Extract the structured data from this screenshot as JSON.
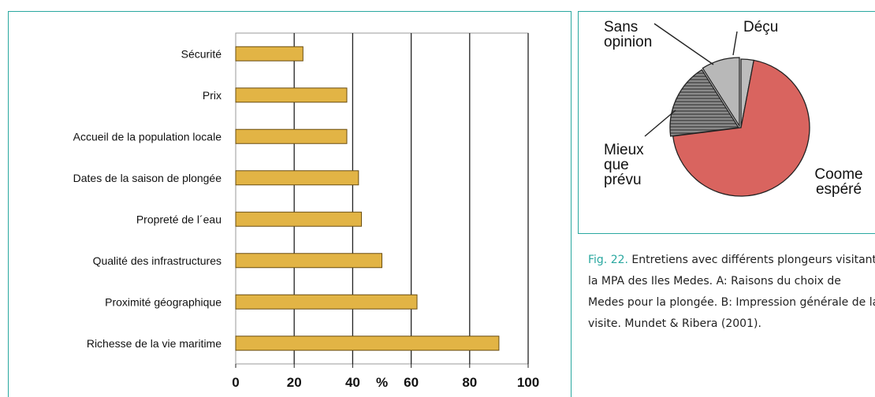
{
  "chart_data": [
    {
      "type": "bar",
      "orientation": "horizontal",
      "categories": [
        "Sécurité",
        "Prix",
        "Accueil de la population locale",
        "Dates de la saison de plongée",
        "Propreté de l´eau",
        "Qualité des infrastructures",
        "Proximité géographique",
        "Richesse de la vie maritime"
      ],
      "values": [
        23,
        38,
        38,
        42,
        43,
        50,
        62,
        90
      ],
      "xlim": [
        0,
        100
      ],
      "xticks": [
        "0",
        "20",
        "40",
        "60",
        "80",
        "100"
      ],
      "xlabel": "%",
      "bar_color": "#e2b445",
      "grid": "vertical"
    },
    {
      "type": "pie",
      "labels": [
        "Déçu",
        "Coome\nespéré",
        "Mieux\nque\nprévu",
        "Sans\nopinion"
      ],
      "values": [
        3,
        70,
        18,
        9
      ],
      "colors": [
        "#bdbdbd",
        "#d9645f",
        "#7a7a7a",
        "#b8b8b8"
      ]
    }
  ],
  "caption": {
    "fig_label": "Fig. 22.",
    "text": " Entretiens avec différents plongeurs visitant la MPA des Iles Medes. A: Raisons du choix de Medes pour la plongée. B: Impression générale de la visite. Mundet & Ribera (2001)."
  }
}
